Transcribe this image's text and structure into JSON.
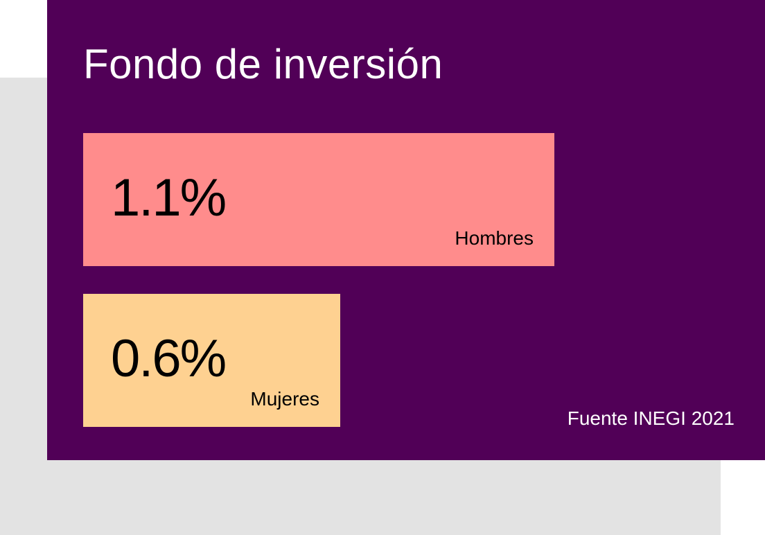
{
  "chart_data": {
    "type": "bar",
    "orientation": "horizontal",
    "title": "Fondo de inversión",
    "categories": [
      "Hombres",
      "Mujeres"
    ],
    "values": [
      1.1,
      0.6
    ],
    "value_labels": [
      "1.1%",
      "0.6%"
    ],
    "unit": "%",
    "grid": false,
    "legend": "none",
    "source": "Fuente INEGI 2021"
  },
  "colors": {
    "background": "#510057",
    "shadow": "#e3e3e3",
    "bars": [
      "#ff8c8c",
      "#fed191"
    ],
    "title_text": "#ffffff",
    "bar_text": "#000000"
  }
}
